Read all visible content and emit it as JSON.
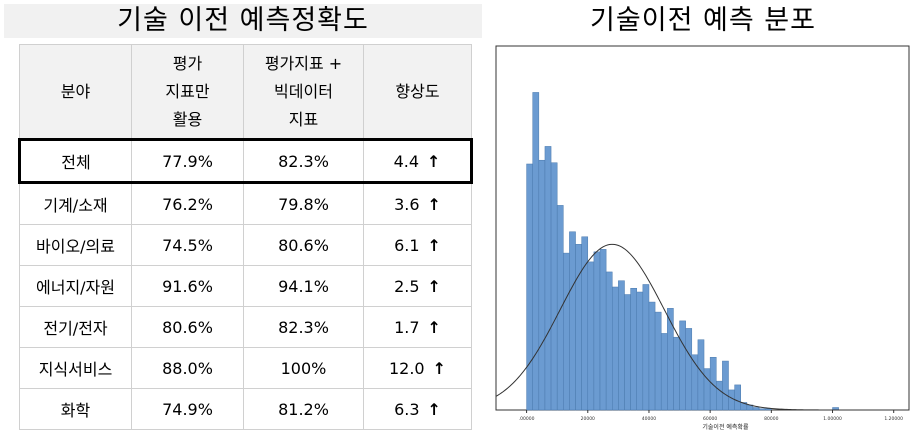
{
  "left_title": "기술 이전 예측정확도",
  "right_title": "기술이전 예측 분포",
  "table": {
    "headers": [
      {
        "lines": [
          "분야"
        ]
      },
      {
        "lines": [
          "평가",
          "지표만",
          "활용"
        ]
      },
      {
        "lines": [
          "평가지표 +",
          "빅데이터",
          "지표"
        ]
      },
      {
        "lines": [
          "향상도"
        ]
      }
    ],
    "rows": [
      {
        "field": "전체",
        "indicator_only": "77.9%",
        "with_bigdata": "82.3%",
        "improvement": "4.4",
        "arrow": "↑",
        "highlight": true
      },
      {
        "field": "기계/소재",
        "indicator_only": "76.2%",
        "with_bigdata": "79.8%",
        "improvement": "3.6",
        "arrow": "↑"
      },
      {
        "field": "바이오/의료",
        "indicator_only": "74.5%",
        "with_bigdata": "80.6%",
        "improvement": "6.1",
        "arrow": "↑"
      },
      {
        "field": "에너지/자원",
        "indicator_only": "91.6%",
        "with_bigdata": "94.1%",
        "improvement": "2.5",
        "arrow": "↑"
      },
      {
        "field": "전기/전자",
        "indicator_only": "80.6%",
        "with_bigdata": "82.3%",
        "improvement": "1.7",
        "arrow": "↑"
      },
      {
        "field": "지식서비스",
        "indicator_only": "88.0%",
        "with_bigdata": "100%",
        "improvement": "12.0",
        "arrow": "↑"
      },
      {
        "field": "화학",
        "indicator_only": "74.9%",
        "with_bigdata": "81.2%",
        "improvement": "6.3",
        "arrow": "↑"
      }
    ]
  },
  "chart_data": {
    "type": "bar",
    "title": "기술이전 예측 분포",
    "xlabel": "기술이전 예측확률",
    "ylabel": "",
    "x_ticks": [
      ".00000",
      "20000",
      "40000",
      "60000",
      "80000",
      "1.00000",
      "1.20000"
    ],
    "xlim": [
      -0.1,
      1.25
    ],
    "bin_width": 0.02,
    "bin_starts": [
      0.0,
      0.02,
      0.04,
      0.06,
      0.08,
      0.1,
      0.12,
      0.14,
      0.16,
      0.18,
      0.2,
      0.22,
      0.24,
      0.26,
      0.28,
      0.3,
      0.32,
      0.34,
      0.36,
      0.38,
      0.4,
      0.42,
      0.44,
      0.46,
      0.48,
      0.5,
      0.52,
      0.54,
      0.56,
      0.58,
      0.6,
      0.62,
      0.64,
      0.66,
      0.68,
      0.7,
      0.72,
      0.74,
      0.76,
      0.78,
      0.8,
      0.82,
      0.84,
      0.86,
      0.88,
      0.9,
      0.92,
      0.94,
      0.96,
      0.98,
      1.0
    ],
    "values": [
      196,
      253,
      199,
      210,
      197,
      163,
      125,
      142,
      132,
      138,
      118,
      126,
      128,
      110,
      98,
      103,
      92,
      97,
      94,
      100,
      86,
      78,
      61,
      81,
      58,
      71,
      65,
      44,
      56,
      33,
      42,
      23,
      39,
      16,
      20,
      6,
      4,
      2,
      1,
      1,
      0,
      0,
      0,
      0,
      0,
      0,
      0,
      0,
      0,
      0,
      2
    ],
    "ylim": [
      0,
      290
    ],
    "bar_color": "#6b9bd1",
    "bar_edge_color": "#4a79ad",
    "normal_curve": {
      "mean": 0.28,
      "sd": 0.17,
      "peak": 132
    },
    "grid": false
  }
}
